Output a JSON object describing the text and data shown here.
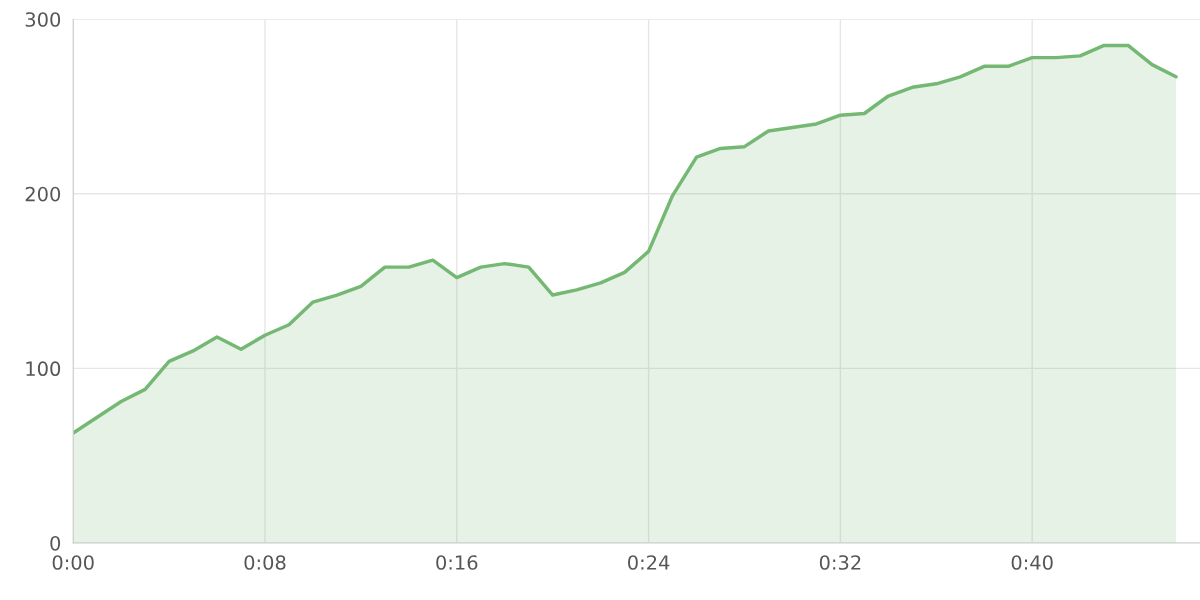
{
  "chart_data": {
    "type": "area",
    "x": [
      0,
      1,
      2,
      3,
      4,
      5,
      6,
      7,
      8,
      9,
      10,
      11,
      12,
      13,
      14,
      15,
      16,
      17,
      18,
      19,
      20,
      21,
      22,
      23,
      24,
      25,
      26,
      27,
      28,
      29,
      30,
      31,
      32,
      33,
      34,
      35,
      36,
      37,
      38,
      39,
      40,
      41,
      42,
      43,
      44,
      45,
      46
    ],
    "series": [
      {
        "color": "#74b874",
        "values": [
          63,
          72,
          81,
          88,
          104,
          110,
          118,
          111,
          119,
          125,
          138,
          142,
          147,
          158,
          158,
          162,
          152,
          158,
          160,
          158,
          142,
          145,
          149,
          155,
          167,
          199,
          221,
          226,
          227,
          236,
          238,
          240,
          245,
          246,
          256,
          261,
          263,
          267,
          273,
          273,
          278,
          278,
          279,
          285,
          285,
          274,
          267
        ]
      }
    ],
    "xlim": [
      0,
      47
    ],
    "xticks": [
      {
        "value": 0,
        "label": "0:00"
      },
      {
        "value": 8,
        "label": "0:08"
      },
      {
        "value": 16,
        "label": "0:16"
      },
      {
        "value": 24,
        "label": "0:24"
      },
      {
        "value": 32,
        "label": "0:32"
      },
      {
        "value": 40,
        "label": "0:40"
      }
    ],
    "ylim": [
      0,
      300
    ],
    "yticks": [
      0,
      100,
      200,
      300
    ],
    "grid": true
  }
}
